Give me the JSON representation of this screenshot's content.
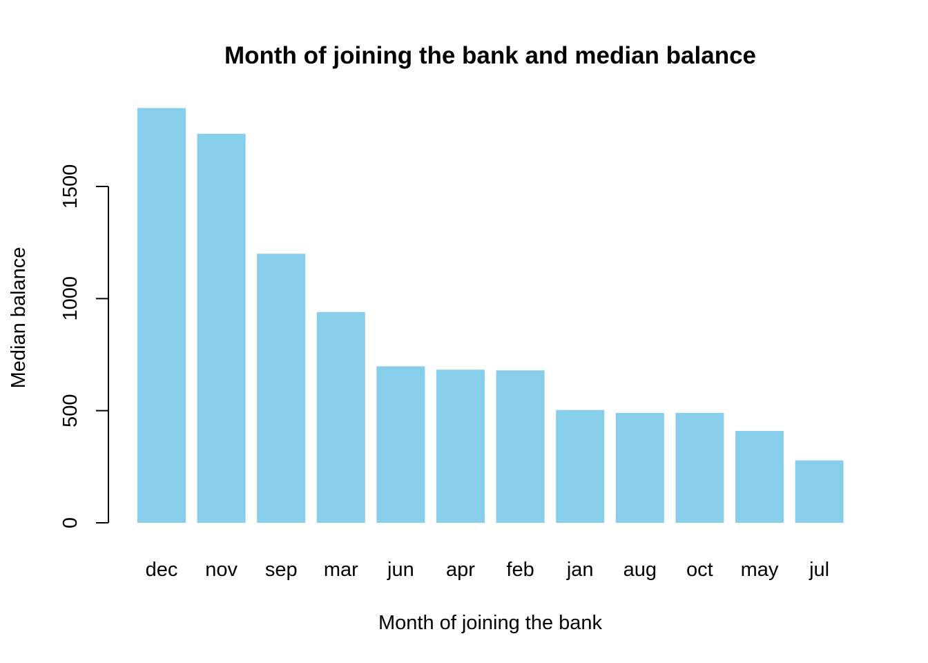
{
  "chart_data": {
    "type": "bar",
    "title": "Month of joining the bank and median balance",
    "xlabel": "Month of joining the bank",
    "ylabel": "Median balance",
    "categories": [
      "dec",
      "nov",
      "sep",
      "mar",
      "jun",
      "apr",
      "feb",
      "jan",
      "aug",
      "oct",
      "may",
      "jul"
    ],
    "values": [
      1850,
      1735,
      1200,
      940,
      698,
      683,
      680,
      503,
      490,
      490,
      410,
      278
    ],
    "yticks": [
      0,
      500,
      1000,
      1500
    ],
    "ylim": [
      0,
      1850
    ],
    "bar_color": "#87CEEB",
    "grid": false,
    "legend": false
  }
}
